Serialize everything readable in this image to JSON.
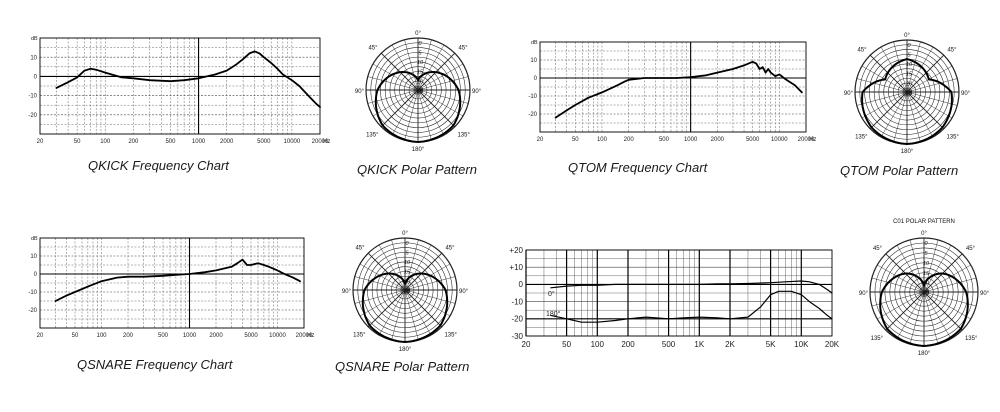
{
  "captions": {
    "qkick_freq": "QKICK Frequency Chart",
    "qkick_polar": "QKICK Polar Pattern",
    "qtom_freq": "QTOM Frequency Chart",
    "qtom_polar": "QTOM Polar Pattern",
    "qsnare_freq": "QSNARE Frequency Chart",
    "qsnare_polar": "QSNARE Polar Pattern"
  },
  "chart_data": [
    {
      "id": "qkick_freq",
      "type": "line",
      "title": "QKICK Frequency Chart",
      "ylabel": "dB",
      "xlabel_unit": "Hz",
      "x_scale": "log",
      "xlim": [
        20,
        20000
      ],
      "ylim": [
        -30,
        20
      ],
      "x_ticks": [
        20,
        50,
        100,
        200,
        500,
        1000,
        2000,
        5000,
        10000,
        20000
      ],
      "x_tick_labels": [
        "20",
        "50",
        "100",
        "200",
        "500",
        "1000",
        "2000",
        "5000",
        "10000",
        "20000"
      ],
      "y_ticks": [
        10,
        0,
        -10,
        -20
      ],
      "y_tick_labels": [
        "10",
        "0",
        "-10",
        "-20"
      ],
      "grid": true,
      "series": [
        {
          "x": [
            30,
            40,
            50,
            60,
            70,
            80,
            100,
            150,
            200,
            300,
            500,
            700,
            1000,
            1500,
            2000,
            2500,
            3000,
            3500,
            4000,
            4500,
            5000,
            6000,
            7000,
            8000,
            10000,
            12000,
            15000,
            18000,
            20000
          ],
          "y": [
            -6,
            -3,
            -0.5,
            3,
            4,
            3.5,
            2,
            -0.5,
            -1,
            -2,
            -2.5,
            -2,
            -1,
            1,
            3,
            6,
            9,
            12,
            13,
            12,
            10,
            7,
            4,
            1,
            -2,
            -5,
            -10,
            -14,
            -16
          ]
        }
      ]
    },
    {
      "id": "qkick_polar",
      "type": "polar",
      "title": "QKICK Polar Pattern",
      "angle_labels": [
        "0°",
        "45°",
        "45°",
        "90°",
        "90°",
        "135°",
        "135°",
        "180°"
      ],
      "ring_labels": [
        "0",
        "5",
        "10",
        "15",
        "20",
        "25",
        "dB"
      ],
      "pattern": "cardioid",
      "response_db": [
        {
          "angle": 0,
          "db": 0
        },
        {
          "angle": 45,
          "db": -1
        },
        {
          "angle": 90,
          "db": -6
        },
        {
          "angle": 135,
          "db": -14
        },
        {
          "angle": 180,
          "db": -22
        }
      ]
    },
    {
      "id": "qtom_freq",
      "type": "line",
      "title": "QTOM Frequency Chart",
      "ylabel": "dB",
      "xlabel_unit": "Hz",
      "x_scale": "log",
      "xlim": [
        20,
        20000
      ],
      "ylim": [
        -30,
        20
      ],
      "x_ticks": [
        20,
        50,
        100,
        200,
        500,
        1000,
        2000,
        5000,
        10000,
        20000
      ],
      "x_tick_labels": [
        "20",
        "50",
        "100",
        "200",
        "500",
        "1000",
        "2000",
        "5000",
        "10000",
        "20000"
      ],
      "y_ticks": [
        10,
        0,
        -10,
        -20
      ],
      "y_tick_labels": [
        "10",
        "0",
        "-10",
        "-20"
      ],
      "grid": true,
      "series": [
        {
          "x": [
            30,
            40,
            50,
            70,
            100,
            150,
            180,
            200,
            300,
            500,
            700,
            1000,
            1500,
            2000,
            3000,
            4000,
            5000,
            5500,
            6000,
            6500,
            7000,
            7500,
            8000,
            9000,
            10000,
            12000,
            15000,
            18000
          ],
          "y": [
            -22,
            -18,
            -15,
            -11,
            -8,
            -4,
            -2,
            -1,
            0,
            0,
            0,
            0.5,
            1.5,
            3,
            5,
            7,
            9,
            8,
            5,
            6,
            3,
            5,
            3,
            1,
            2,
            -1,
            -4,
            -8
          ]
        }
      ]
    },
    {
      "id": "qtom_polar",
      "type": "polar",
      "title": "QTOM Polar Pattern",
      "angle_labels": [
        "0°",
        "45°",
        "45°",
        "90°",
        "90°",
        "135°",
        "135°",
        "180°"
      ],
      "ring_labels": [
        "0",
        "5",
        "10",
        "15",
        "20",
        "25",
        "dB"
      ],
      "pattern": "supercardioid",
      "response_db": [
        {
          "angle": 0,
          "db": 0
        },
        {
          "angle": 45,
          "db": -1
        },
        {
          "angle": 90,
          "db": -4
        },
        {
          "angle": 120,
          "db": -14
        },
        {
          "angle": 180,
          "db": -10
        }
      ]
    },
    {
      "id": "qsnare_freq",
      "type": "line",
      "title": "QSNARE Frequency Chart",
      "ylabel": "dB",
      "xlabel_unit": "Hz",
      "x_scale": "log",
      "xlim": [
        20,
        20000
      ],
      "ylim": [
        -30,
        20
      ],
      "x_ticks": [
        20,
        50,
        100,
        200,
        500,
        1000,
        2000,
        5000,
        10000,
        20000
      ],
      "x_tick_labels": [
        "20",
        "50",
        "100",
        "200",
        "500",
        "1000",
        "2000",
        "5000",
        "10000",
        "20000"
      ],
      "y_ticks": [
        10,
        0,
        -10,
        -20
      ],
      "y_tick_labels": [
        "10",
        "0",
        "-10",
        "-20"
      ],
      "grid": true,
      "series": [
        {
          "x": [
            30,
            40,
            50,
            70,
            100,
            150,
            200,
            300,
            500,
            700,
            1000,
            1500,
            2000,
            3000,
            3500,
            4000,
            4500,
            5000,
            6000,
            7000,
            8000,
            10000,
            12000,
            15000,
            18000
          ],
          "y": [
            -15,
            -12,
            -10,
            -7,
            -4,
            -2,
            -1.5,
            -1.5,
            -1,
            -0.5,
            0,
            1,
            2,
            4,
            6,
            8,
            5,
            5,
            6,
            5,
            4,
            2,
            0,
            -2,
            -4
          ]
        }
      ]
    },
    {
      "id": "qsnare_polar",
      "type": "polar",
      "title": "QSNARE Polar Pattern",
      "angle_labels": [
        "0°",
        "45°",
        "45°",
        "90°",
        "90°",
        "135°",
        "135°",
        "180°"
      ],
      "ring_labels": [
        "0",
        "5",
        "10",
        "15",
        "20",
        "25",
        "dB"
      ],
      "pattern": "cardioid",
      "response_db": [
        {
          "angle": 0,
          "db": 0
        },
        {
          "angle": 45,
          "db": -1
        },
        {
          "angle": 90,
          "db": -6
        },
        {
          "angle": 135,
          "db": -15
        },
        {
          "angle": 180,
          "db": -24
        }
      ]
    },
    {
      "id": "c01_freq",
      "type": "line",
      "x_scale": "log",
      "xlim": [
        20,
        20000
      ],
      "ylim": [
        -30,
        20
      ],
      "x_ticks": [
        20,
        50,
        100,
        200,
        500,
        1000,
        2000,
        5000,
        10000,
        20000
      ],
      "x_tick_labels": [
        "20",
        "50",
        "100",
        "200",
        "500",
        "1K",
        "2K",
        "5K",
        "10K",
        "20K"
      ],
      "y_ticks": [
        20,
        10,
        0,
        -10,
        -20,
        -30
      ],
      "y_tick_labels": [
        "+20",
        "+10",
        "0",
        "-10",
        "-20",
        "-30"
      ],
      "grid": true,
      "series": [
        {
          "name": "0°",
          "x": [
            35,
            50,
            70,
            100,
            150,
            200,
            300,
            500,
            700,
            1000,
            1500,
            2000,
            3000,
            5000,
            7000,
            10000,
            12000,
            15000,
            18000,
            20000
          ],
          "y": [
            -2,
            -1,
            -0.5,
            -0.5,
            0,
            0,
            0,
            0,
            0,
            0,
            0.3,
            0.3,
            0.5,
            1,
            1.5,
            2,
            1.5,
            0,
            -3,
            -5
          ]
        },
        {
          "name": "180°",
          "x": [
            35,
            50,
            70,
            100,
            150,
            200,
            300,
            500,
            700,
            1000,
            1500,
            2000,
            3000,
            4000,
            5000,
            6000,
            7000,
            8000,
            10000,
            12000,
            15000,
            18000,
            20000
          ],
          "y": [
            -18,
            -20,
            -22,
            -22,
            -21,
            -20,
            -19,
            -20,
            -19.5,
            -19,
            -19.5,
            -20,
            -19,
            -13,
            -6,
            -4,
            -4,
            -4,
            -6,
            -10,
            -14,
            -18,
            -20
          ]
        }
      ]
    },
    {
      "id": "c01_polar",
      "type": "polar",
      "title": "C01 POLAR PATTERN",
      "angle_labels": [
        "0°",
        "45°",
        "45°",
        "90°",
        "90°",
        "135°",
        "135°",
        "180°"
      ],
      "ring_labels": [
        "0",
        "5",
        "10",
        "15",
        "20",
        "25",
        "dB"
      ],
      "pattern": "cardioid",
      "response_db": [
        {
          "angle": 0,
          "db": 0
        },
        {
          "angle": 45,
          "db": -1
        },
        {
          "angle": 90,
          "db": -6
        },
        {
          "angle": 135,
          "db": -14
        },
        {
          "angle": 180,
          "db": -24
        }
      ]
    }
  ]
}
